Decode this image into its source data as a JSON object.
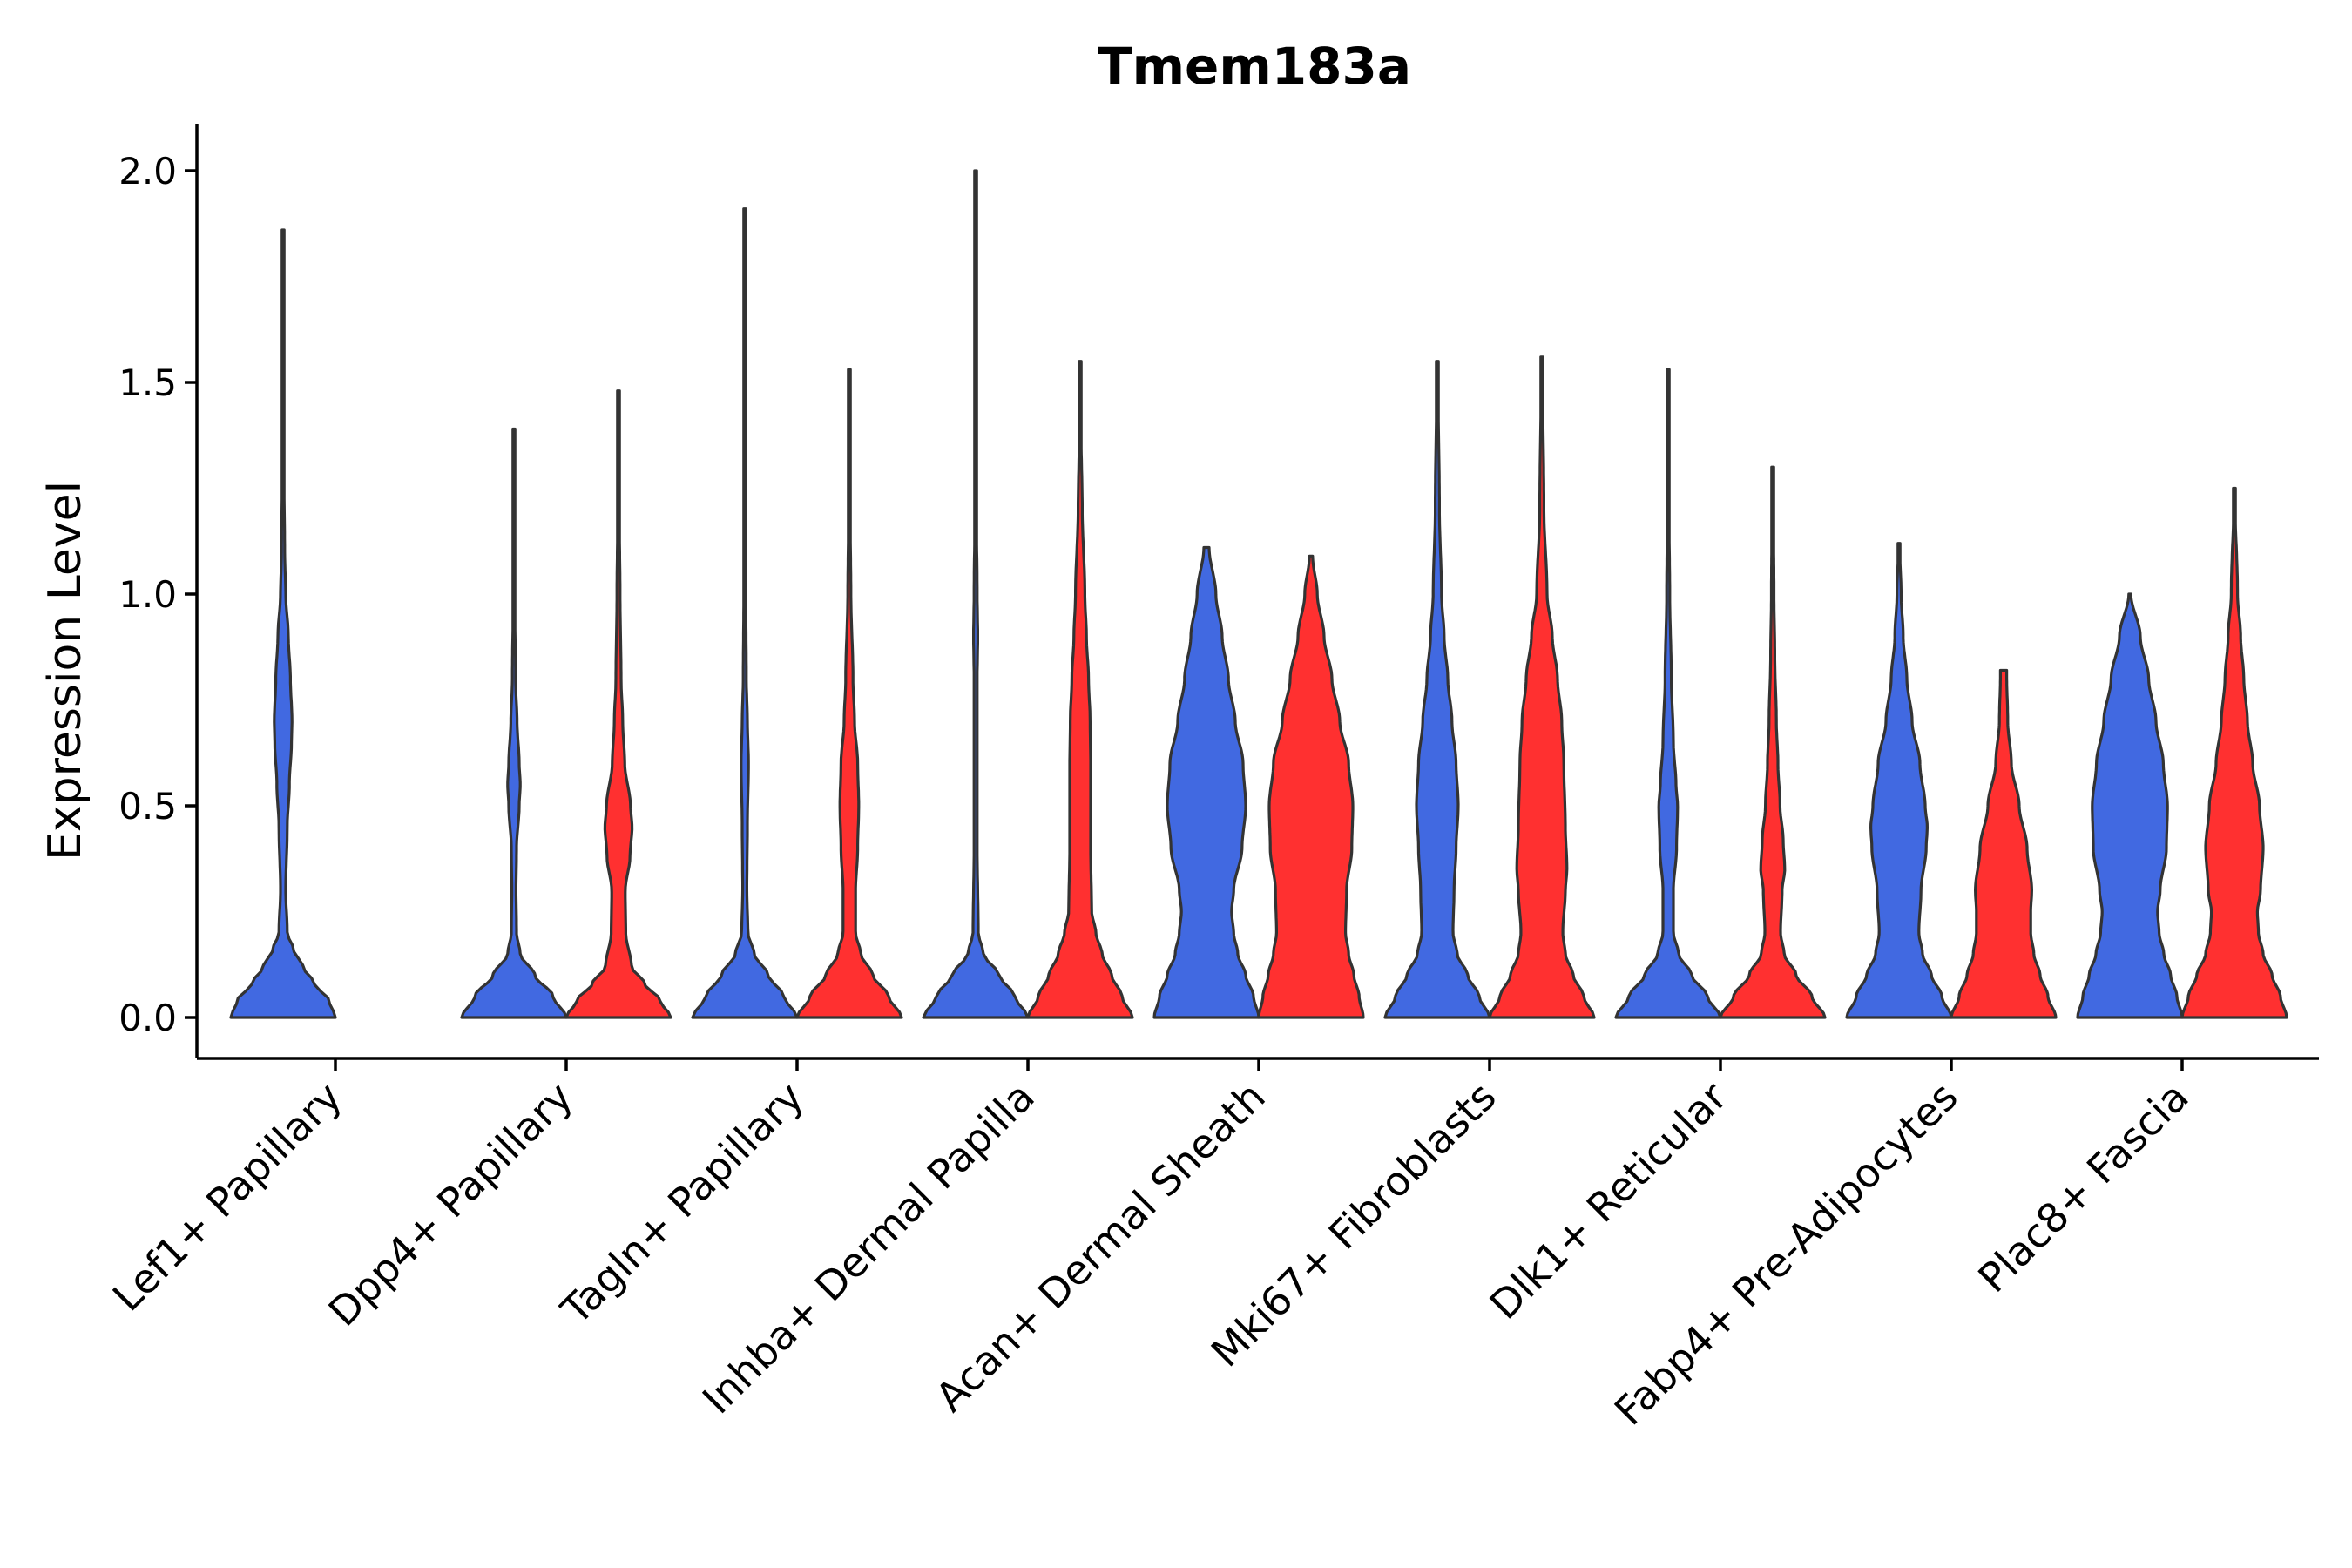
{
  "chart_data": {
    "type": "violin",
    "title": "Tmem183a",
    "xlabel": "",
    "ylabel": "Expression Level",
    "ylim": [
      -0.1,
      2.1
    ],
    "yticks": [
      0.0,
      0.5,
      1.0,
      1.5,
      2.0
    ],
    "ytick_labels": [
      "0.0",
      "0.5",
      "1.0",
      "1.5",
      "2.0"
    ],
    "grid": false,
    "legend": "none",
    "series_colors": [
      "#4169E1",
      "#FF3030"
    ],
    "categories": [
      "Lef1+ Papillary",
      "Dpp4+ Papillary",
      "Tagln+ Papillary",
      "Inhba+ Dermal Papilla",
      "Acan+ Dermal Sheath",
      "Mki67+ Fibroblasts",
      "Dlk1+ Reticular",
      "Fabp4+ Pre-Adipocytes",
      "Plac8+ Fascia"
    ],
    "violins": [
      {
        "category": "Lef1+ Papillary",
        "group": 1,
        "max": 1.86,
        "profile": [
          [
            0,
            1
          ],
          [
            0.04,
            0.88
          ],
          [
            0.08,
            0.6
          ],
          [
            0.12,
            0.38
          ],
          [
            0.16,
            0.2
          ],
          [
            0.2,
            0.08
          ],
          [
            0.3,
            0.05
          ],
          [
            0.45,
            0.08
          ],
          [
            0.55,
            0.12
          ],
          [
            0.65,
            0.16
          ],
          [
            0.7,
            0.17
          ],
          [
            0.8,
            0.14
          ],
          [
            0.9,
            0.1
          ],
          [
            1.0,
            0.05
          ],
          [
            1.1,
            0.03
          ],
          [
            1.3,
            0.015
          ],
          [
            1.6,
            0.008
          ],
          [
            1.86,
            0.005
          ]
        ]
      },
      {
        "category": "Dpp4+ Papillary",
        "group": 1,
        "max": 1.39,
        "profile": [
          [
            0,
            1
          ],
          [
            0.05,
            0.75
          ],
          [
            0.1,
            0.4
          ],
          [
            0.15,
            0.12
          ],
          [
            0.2,
            0.05
          ],
          [
            0.3,
            0.04
          ],
          [
            0.4,
            0.05
          ],
          [
            0.5,
            0.1
          ],
          [
            0.55,
            0.12
          ],
          [
            0.6,
            0.1
          ],
          [
            0.7,
            0.06
          ],
          [
            0.8,
            0.03
          ],
          [
            1.0,
            0.015
          ],
          [
            1.2,
            0.008
          ],
          [
            1.39,
            0.005
          ]
        ]
      },
      {
        "category": "Dpp4+ Papillary",
        "group": 2,
        "max": 1.48,
        "profile": [
          [
            0,
            1
          ],
          [
            0.04,
            0.8
          ],
          [
            0.08,
            0.5
          ],
          [
            0.12,
            0.25
          ],
          [
            0.2,
            0.14
          ],
          [
            0.3,
            0.13
          ],
          [
            0.38,
            0.22
          ],
          [
            0.45,
            0.26
          ],
          [
            0.5,
            0.23
          ],
          [
            0.6,
            0.12
          ],
          [
            0.7,
            0.08
          ],
          [
            0.8,
            0.05
          ],
          [
            1.0,
            0.03
          ],
          [
            1.2,
            0.015
          ],
          [
            1.48,
            0.005
          ]
        ]
      },
      {
        "category": "Tagln+ Papillary",
        "group": 1,
        "max": 1.91,
        "profile": [
          [
            0,
            1
          ],
          [
            0.05,
            0.75
          ],
          [
            0.1,
            0.45
          ],
          [
            0.15,
            0.18
          ],
          [
            0.2,
            0.06
          ],
          [
            0.3,
            0.04
          ],
          [
            0.45,
            0.05
          ],
          [
            0.6,
            0.07
          ],
          [
            0.7,
            0.05
          ],
          [
            0.8,
            0.03
          ],
          [
            1.0,
            0.02
          ],
          [
            1.2,
            0.01
          ],
          [
            1.5,
            0.007
          ],
          [
            1.91,
            0.005
          ]
        ]
      },
      {
        "category": "Tagln+ Papillary",
        "group": 2,
        "max": 1.53,
        "profile": [
          [
            0,
            1
          ],
          [
            0.05,
            0.75
          ],
          [
            0.1,
            0.45
          ],
          [
            0.15,
            0.22
          ],
          [
            0.2,
            0.12
          ],
          [
            0.3,
            0.12
          ],
          [
            0.4,
            0.16
          ],
          [
            0.5,
            0.18
          ],
          [
            0.6,
            0.16
          ],
          [
            0.7,
            0.1
          ],
          [
            0.8,
            0.07
          ],
          [
            1.0,
            0.03
          ],
          [
            1.2,
            0.015
          ],
          [
            1.53,
            0.005
          ]
        ]
      },
      {
        "category": "Inhba+ Dermal Papilla",
        "group": 1,
        "max": 2.0,
        "profile": [
          [
            0,
            1
          ],
          [
            0.05,
            0.75
          ],
          [
            0.1,
            0.45
          ],
          [
            0.15,
            0.15
          ],
          [
            0.2,
            0.05
          ],
          [
            0.4,
            0.03
          ],
          [
            0.6,
            0.03
          ],
          [
            0.8,
            0.03
          ],
          [
            0.9,
            0.04
          ],
          [
            1.0,
            0.03
          ],
          [
            1.2,
            0.015
          ],
          [
            1.5,
            0.008
          ],
          [
            2.0,
            0.005
          ]
        ]
      },
      {
        "category": "Inhba+ Dermal Papilla",
        "group": 2,
        "max": 1.55,
        "profile": [
          [
            0,
            1
          ],
          [
            0.05,
            0.8
          ],
          [
            0.1,
            0.6
          ],
          [
            0.15,
            0.42
          ],
          [
            0.2,
            0.3
          ],
          [
            0.25,
            0.22
          ],
          [
            0.4,
            0.2
          ],
          [
            0.5,
            0.2
          ],
          [
            0.6,
            0.2
          ],
          [
            0.7,
            0.19
          ],
          [
            0.8,
            0.16
          ],
          [
            0.9,
            0.12
          ],
          [
            1.0,
            0.09
          ],
          [
            1.2,
            0.04
          ],
          [
            1.4,
            0.015
          ],
          [
            1.55,
            0.005
          ]
        ]
      },
      {
        "category": "Acan+ Dermal Sheath",
        "group": 1,
        "max": 1.11,
        "profile": [
          [
            0,
            1
          ],
          [
            0.05,
            0.9
          ],
          [
            0.1,
            0.75
          ],
          [
            0.15,
            0.6
          ],
          [
            0.2,
            0.52
          ],
          [
            0.25,
            0.48
          ],
          [
            0.3,
            0.52
          ],
          [
            0.4,
            0.68
          ],
          [
            0.5,
            0.75
          ],
          [
            0.6,
            0.7
          ],
          [
            0.7,
            0.55
          ],
          [
            0.8,
            0.42
          ],
          [
            0.9,
            0.3
          ],
          [
            1.0,
            0.18
          ],
          [
            1.11,
            0.05
          ]
        ]
      },
      {
        "category": "Acan+ Dermal Sheath",
        "group": 2,
        "max": 1.09,
        "profile": [
          [
            0,
            1
          ],
          [
            0.05,
            0.92
          ],
          [
            0.1,
            0.82
          ],
          [
            0.15,
            0.72
          ],
          [
            0.2,
            0.66
          ],
          [
            0.3,
            0.68
          ],
          [
            0.4,
            0.78
          ],
          [
            0.5,
            0.8
          ],
          [
            0.6,
            0.72
          ],
          [
            0.7,
            0.55
          ],
          [
            0.8,
            0.4
          ],
          [
            0.9,
            0.25
          ],
          [
            1.0,
            0.12
          ],
          [
            1.09,
            0.03
          ]
        ]
      },
      {
        "category": "Mki67+ Fibroblasts",
        "group": 1,
        "max": 1.55,
        "profile": [
          [
            0,
            1
          ],
          [
            0.05,
            0.8
          ],
          [
            0.1,
            0.58
          ],
          [
            0.15,
            0.38
          ],
          [
            0.2,
            0.3
          ],
          [
            0.3,
            0.32
          ],
          [
            0.4,
            0.36
          ],
          [
            0.5,
            0.4
          ],
          [
            0.6,
            0.36
          ],
          [
            0.7,
            0.28
          ],
          [
            0.8,
            0.2
          ],
          [
            0.9,
            0.13
          ],
          [
            1.0,
            0.08
          ],
          [
            1.2,
            0.04
          ],
          [
            1.55,
            0.01
          ]
        ]
      },
      {
        "category": "Mki67+ Fibroblasts",
        "group": 2,
        "max": 1.56,
        "profile": [
          [
            0,
            1
          ],
          [
            0.05,
            0.8
          ],
          [
            0.1,
            0.6
          ],
          [
            0.15,
            0.45
          ],
          [
            0.2,
            0.4
          ],
          [
            0.3,
            0.45
          ],
          [
            0.35,
            0.48
          ],
          [
            0.45,
            0.45
          ],
          [
            0.6,
            0.42
          ],
          [
            0.7,
            0.38
          ],
          [
            0.8,
            0.3
          ],
          [
            0.9,
            0.2
          ],
          [
            1.0,
            0.1
          ],
          [
            1.2,
            0.04
          ],
          [
            1.56,
            0.01
          ]
        ]
      },
      {
        "category": "Dlk1+ Reticular",
        "group": 1,
        "max": 1.53,
        "profile": [
          [
            0,
            1
          ],
          [
            0.05,
            0.75
          ],
          [
            0.1,
            0.45
          ],
          [
            0.15,
            0.2
          ],
          [
            0.2,
            0.1
          ],
          [
            0.3,
            0.1
          ],
          [
            0.4,
            0.16
          ],
          [
            0.5,
            0.18
          ],
          [
            0.55,
            0.15
          ],
          [
            0.65,
            0.1
          ],
          [
            0.8,
            0.06
          ],
          [
            1.0,
            0.03
          ],
          [
            1.2,
            0.015
          ],
          [
            1.53,
            0.005
          ]
        ]
      },
      {
        "category": "Dlk1+ Reticular",
        "group": 2,
        "max": 1.3,
        "profile": [
          [
            0,
            1
          ],
          [
            0.05,
            0.75
          ],
          [
            0.1,
            0.45
          ],
          [
            0.15,
            0.22
          ],
          [
            0.2,
            0.15
          ],
          [
            0.3,
            0.18
          ],
          [
            0.35,
            0.23
          ],
          [
            0.42,
            0.2
          ],
          [
            0.5,
            0.14
          ],
          [
            0.6,
            0.1
          ],
          [
            0.7,
            0.07
          ],
          [
            0.85,
            0.04
          ],
          [
            1.0,
            0.025
          ],
          [
            1.3,
            0.005
          ]
        ]
      },
      {
        "category": "Fabp4+ Pre-Adipocytes",
        "group": 1,
        "max": 1.12,
        "profile": [
          [
            0,
            1
          ],
          [
            0.05,
            0.82
          ],
          [
            0.1,
            0.62
          ],
          [
            0.15,
            0.45
          ],
          [
            0.2,
            0.38
          ],
          [
            0.3,
            0.42
          ],
          [
            0.4,
            0.52
          ],
          [
            0.45,
            0.54
          ],
          [
            0.5,
            0.5
          ],
          [
            0.6,
            0.4
          ],
          [
            0.7,
            0.25
          ],
          [
            0.8,
            0.15
          ],
          [
            0.9,
            0.08
          ],
          [
            1.0,
            0.04
          ],
          [
            1.12,
            0.01
          ]
        ]
      },
      {
        "category": "Fabp4+ Pre-Adipocytes",
        "group": 2,
        "max": 0.82,
        "profile": [
          [
            0,
            1
          ],
          [
            0.05,
            0.85
          ],
          [
            0.1,
            0.7
          ],
          [
            0.15,
            0.58
          ],
          [
            0.2,
            0.52
          ],
          [
            0.25,
            0.52
          ],
          [
            0.3,
            0.54
          ],
          [
            0.4,
            0.45
          ],
          [
            0.5,
            0.3
          ],
          [
            0.6,
            0.15
          ],
          [
            0.7,
            0.08
          ],
          [
            0.81,
            0.06
          ],
          [
            0.82,
            0.06
          ]
        ]
      },
      {
        "category": "Plac8+ Fascia",
        "group": 1,
        "max": 1.0,
        "profile": [
          [
            0,
            1
          ],
          [
            0.05,
            0.9
          ],
          [
            0.1,
            0.78
          ],
          [
            0.15,
            0.65
          ],
          [
            0.2,
            0.56
          ],
          [
            0.25,
            0.53
          ],
          [
            0.3,
            0.58
          ],
          [
            0.4,
            0.7
          ],
          [
            0.5,
            0.72
          ],
          [
            0.6,
            0.64
          ],
          [
            0.7,
            0.5
          ],
          [
            0.8,
            0.36
          ],
          [
            0.9,
            0.2
          ],
          [
            1.0,
            0.02
          ]
        ]
      },
      {
        "category": "Plac8+ Fascia",
        "group": 2,
        "max": 1.25,
        "profile": [
          [
            0,
            1
          ],
          [
            0.05,
            0.88
          ],
          [
            0.1,
            0.72
          ],
          [
            0.15,
            0.55
          ],
          [
            0.2,
            0.46
          ],
          [
            0.25,
            0.44
          ],
          [
            0.3,
            0.5
          ],
          [
            0.4,
            0.55
          ],
          [
            0.5,
            0.48
          ],
          [
            0.6,
            0.35
          ],
          [
            0.7,
            0.25
          ],
          [
            0.8,
            0.18
          ],
          [
            0.9,
            0.12
          ],
          [
            1.0,
            0.06
          ],
          [
            1.25,
            0.005
          ]
        ]
      }
    ]
  }
}
